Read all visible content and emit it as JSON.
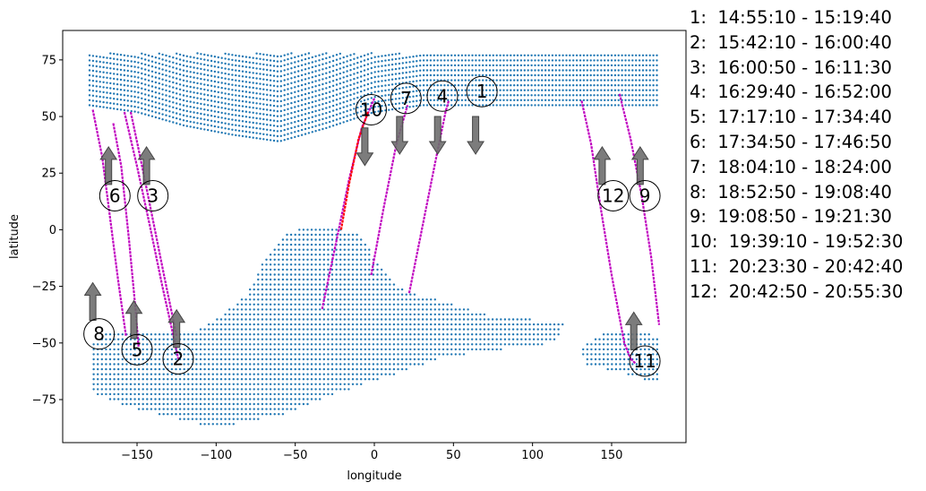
{
  "chart_data": {
    "type": "scatter",
    "xlabel": "longitude",
    "ylabel": "latitude",
    "xlim": [
      -197,
      197
    ],
    "ylim": [
      -94,
      88
    ],
    "x_ticks": [
      -150,
      -100,
      -50,
      0,
      50,
      100,
      150
    ],
    "y_ticks": [
      -75,
      -50,
      -25,
      0,
      25,
      50,
      75
    ],
    "x_tick_labels": [
      "−150",
      "−100",
      "−50",
      "0",
      "50",
      "100",
      "150"
    ],
    "y_tick_labels": [
      "−75",
      "−50",
      "−25",
      "0",
      "25",
      "50",
      "75"
    ],
    "grid": false,
    "legend_position": "outside-right",
    "colors": {
      "dots": "#1f77b4",
      "track": "#c000c0",
      "track_highlight": "#ff0000",
      "arrow": "#6e6e6e"
    },
    "dot_regions": {
      "north_top": {
        "lon": [
          -180,
          180
        ],
        "lat_min": [
          78,
          76,
          66,
          60,
          55,
          55,
          60,
          66,
          74,
          78,
          78,
          78,
          78
        ],
        "lat_max": 78
      },
      "north_lower": {
        "lon": [
          -180,
          180
        ],
        "lat_bottom": [
          55,
          52,
          46,
          42,
          39,
          45,
          52,
          55,
          55,
          55,
          55,
          55,
          55
        ]
      },
      "south_america": [
        [
          -172,
          -47
        ],
        [
          -165,
          -44
        ],
        [
          -150,
          -44
        ],
        [
          -130,
          -46
        ],
        [
          -110,
          -44
        ],
        [
          -95,
          -37
        ],
        [
          -80,
          -28
        ],
        [
          -70,
          -14
        ],
        [
          -55,
          -2
        ],
        [
          -45,
          2
        ],
        [
          -30,
          2
        ],
        [
          -10,
          -2
        ],
        [
          0,
          -12
        ],
        [
          10,
          -22
        ],
        [
          20,
          -27
        ],
        [
          35,
          -30
        ],
        [
          55,
          -34
        ],
        [
          75,
          -38
        ],
        [
          105,
          -40
        ],
        [
          120,
          -41
        ],
        [
          115,
          -50
        ],
        [
          80,
          -53
        ],
        [
          45,
          -56
        ],
        [
          20,
          -62
        ],
        [
          -5,
          -68
        ],
        [
          -30,
          -74
        ],
        [
          -60,
          -82
        ],
        [
          -90,
          -86
        ],
        [
          -110,
          -86
        ],
        [
          -140,
          -81
        ],
        [
          -165,
          -76
        ],
        [
          -178,
          -72
        ],
        [
          -180,
          -62
        ],
        [
          -178,
          -50
        ]
      ],
      "south_east": [
        [
          130,
          -53
        ],
        [
          145,
          -45
        ],
        [
          165,
          -45
        ],
        [
          180,
          -47
        ],
        [
          180,
          -68
        ],
        [
          170,
          -66
        ],
        [
          150,
          -62
        ],
        [
          135,
          -60
        ]
      ]
    },
    "tracks": [
      {
        "id": "1",
        "color": "#c000c0",
        "points": [
          [
            -33,
            -35
          ],
          [
            -24,
            -5
          ],
          [
            -16,
            22
          ],
          [
            -8,
            45
          ],
          [
            0,
            58
          ]
        ],
        "arrow": "down",
        "label_pos": [
          68,
          61
        ],
        "arrow_pos": [
          64,
          50
        ]
      },
      {
        "id": "2",
        "color": "#c000c0",
        "points": [
          [
            -158,
            52
          ],
          [
            -150,
            28
          ],
          [
            -142,
            2
          ],
          [
            -134,
            -25
          ],
          [
            -126,
            -50
          ],
          [
            -124,
            -57
          ]
        ],
        "arrow": "up",
        "label_pos": [
          -124,
          -57
        ],
        "arrow_pos": [
          -125,
          -52
        ]
      },
      {
        "id": "3",
        "color": "#c000c0",
        "points": [
          [
            -154,
            52
          ],
          [
            -148,
            32
          ],
          [
            -141,
            8
          ],
          [
            -133,
            -20
          ],
          [
            -125,
            -47
          ]
        ],
        "arrow": "up",
        "label_pos": [
          -140,
          15
        ],
        "arrow_pos": [
          -144,
          20
        ]
      },
      {
        "id": "4",
        "color": "#c000c0",
        "points": [
          [
            22,
            -28
          ],
          [
            30,
            0
          ],
          [
            38,
            28
          ],
          [
            45,
            52
          ],
          [
            47,
            57
          ]
        ],
        "arrow": "down",
        "label_pos": [
          43,
          59
        ],
        "arrow_pos": [
          40,
          50
        ]
      },
      {
        "id": "5",
        "color": "#c000c0",
        "points": [
          [
            -165,
            47
          ],
          [
            -160,
            28
          ],
          [
            -155,
            -5
          ],
          [
            -151,
            -35
          ],
          [
            -149,
            -52
          ]
        ],
        "arrow": "up",
        "label_pos": [
          -150,
          -53
        ],
        "arrow_pos": [
          -152,
          -48
        ]
      },
      {
        "id": "6",
        "color": "#c000c0",
        "points": [
          [
            -178,
            53
          ],
          [
            -172,
            32
          ],
          [
            -167,
            5
          ],
          [
            -162,
            -22
          ],
          [
            -157,
            -47
          ]
        ],
        "arrow": "up",
        "label_pos": [
          -164,
          15
        ],
        "arrow_pos": [
          -168,
          20
        ]
      },
      {
        "id": "7",
        "color": "#c000c0",
        "points": [
          [
            -2,
            -20
          ],
          [
            6,
            10
          ],
          [
            14,
            38
          ],
          [
            21,
            55
          ]
        ],
        "arrow": "down",
        "label_pos": [
          20,
          58
        ],
        "arrow_pos": [
          16,
          50
        ]
      },
      {
        "id": "8",
        "color": "#c000c0",
        "points": [
          [
            -180,
            -62
          ]
        ],
        "arrow": "up",
        "label_pos": [
          -174,
          -46
        ],
        "arrow_pos": [
          -178,
          -40
        ]
      },
      {
        "id": "9",
        "color": "#c000c0",
        "points": [
          [
            155,
            60
          ],
          [
            162,
            40
          ],
          [
            169,
            15
          ],
          [
            175,
            -12
          ],
          [
            180,
            -42
          ]
        ],
        "arrow": "up",
        "label_pos": [
          171,
          15
        ],
        "arrow_pos": [
          168,
          20
        ]
      },
      {
        "id": "10",
        "color": "#ff0000",
        "points": [
          [
            -21,
            0
          ],
          [
            -16,
            20
          ],
          [
            -10,
            40
          ],
          [
            -4,
            52
          ]
        ],
        "arrow": "down",
        "label_pos": [
          -2,
          53
        ],
        "arrow_pos": [
          -6,
          45
        ]
      },
      {
        "id": "11",
        "color": "#c000c0",
        "points": [
          [
            162,
            -57
          ],
          [
            165,
            -59
          ]
        ],
        "arrow": "up",
        "label_pos": [
          171,
          -58
        ],
        "arrow_pos": [
          164,
          -53
        ]
      },
      {
        "id": "12",
        "color": "#c000c0",
        "points": [
          [
            131,
            57
          ],
          [
            137,
            38
          ],
          [
            143,
            10
          ],
          [
            150,
            -20
          ],
          [
            158,
            -50
          ],
          [
            162,
            -57
          ]
        ],
        "arrow": "up",
        "label_pos": [
          151,
          15
        ],
        "arrow_pos": [
          144,
          20
        ]
      }
    ],
    "legend_entries": [
      "1:  14:55:10 - 15:19:40",
      "2:  15:42:10 - 16:00:40",
      "3:  16:00:50 - 16:11:30",
      "4:  16:29:40 - 16:52:00",
      "5:  17:17:10 - 17:34:40",
      "6:  17:34:50 - 17:46:50",
      "7:  18:04:10 - 18:24:00",
      "8:  18:52:50 - 19:08:40",
      "9:  19:08:50 - 19:21:30",
      "10:  19:39:10 - 19:52:30",
      "11:  20:23:30 - 20:42:40",
      "12:  20:42:50 - 20:55:30"
    ]
  }
}
